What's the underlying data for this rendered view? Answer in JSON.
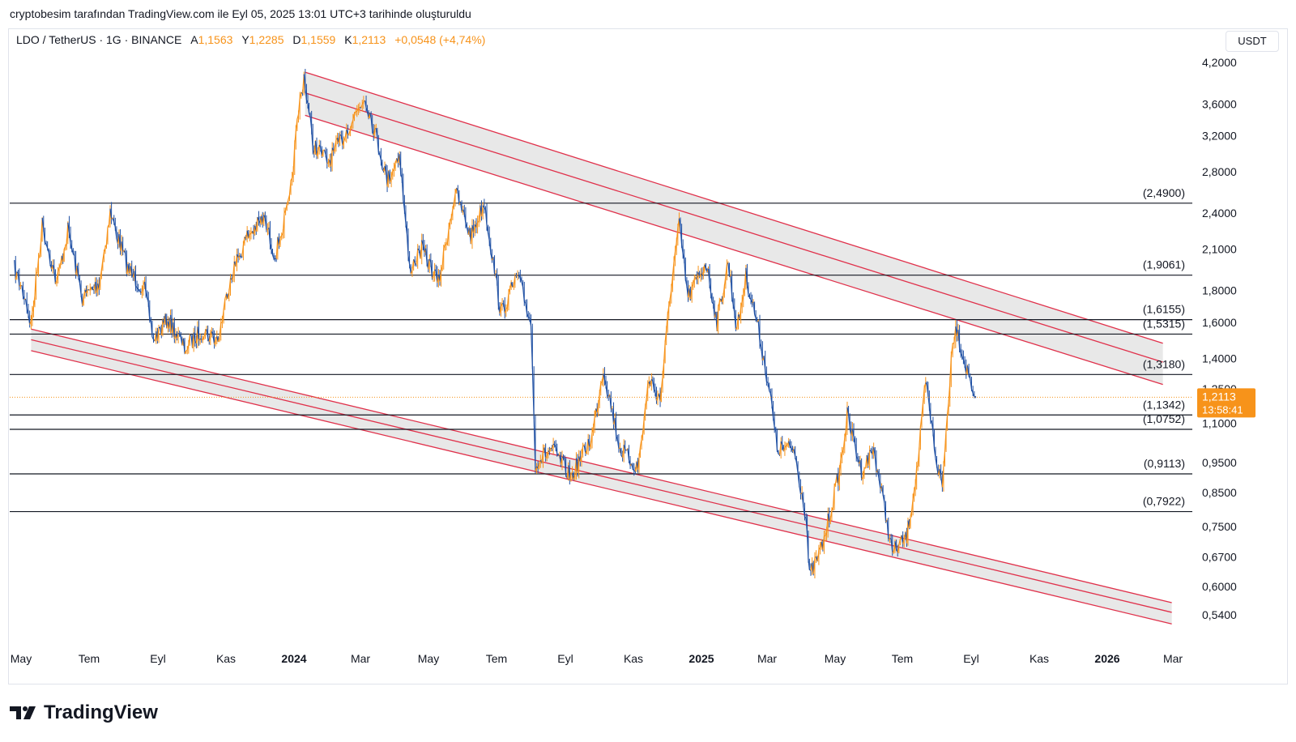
{
  "caption": "cryptobesim tarafından TradingView.com ile Eyl 05, 2025 13:01 UTC+3 tarihinde oluşturuldu",
  "header": {
    "symbol": "LDO / TetherUS · 1G · BINANCE",
    "open_key": "A",
    "open": "1,1563",
    "high_key": "Y",
    "high": "1,2285",
    "low_key": "D",
    "low": "1,1559",
    "close_key": "K",
    "close": "1,2113",
    "change": "+0,0548 (+4,74%)"
  },
  "currency": "USDT",
  "brand": "TradingView",
  "colors": {
    "up": "#f7931a",
    "down": "#1e4fa3",
    "channel": "#e0314b",
    "channel_fill": "#e4e4e4",
    "hline": "#131722",
    "price_tag": "#f7931a"
  },
  "chart_data": {
    "type": "line",
    "scale": "log",
    "pair": "LDO / TetherUS",
    "interval": "1G",
    "exchange": "BINANCE",
    "ylim": [
      0.51,
      4.3
    ],
    "y_ticks": [
      "4,2000",
      "3,6000",
      "3,2000",
      "2,8000",
      "2,4000",
      "2,1000",
      "1,8000",
      "1,6000",
      "1,4000",
      "1,2500",
      "1,1000",
      "0,9500",
      "0,8500",
      "0,7500",
      "0,6700",
      "0,6000",
      "0,5400"
    ],
    "y_tick_values": [
      4.2,
      3.6,
      3.2,
      2.8,
      2.4,
      2.1,
      1.8,
      1.6,
      1.4,
      1.25,
      1.1,
      0.95,
      0.85,
      0.75,
      0.67,
      0.6,
      0.54
    ],
    "x_ticks": [
      "May",
      "Tem",
      "Eyl",
      "Kas",
      "2024",
      "Mar",
      "May",
      "Tem",
      "Eyl",
      "Kas",
      "2025",
      "Mar",
      "May",
      "Tem",
      "Eyl",
      "Kas",
      "2026",
      "Mar"
    ],
    "x_tick_dates": [
      "2023-05-01",
      "2023-07-01",
      "2023-09-01",
      "2023-11-01",
      "2024-01-01",
      "2024-03-01",
      "2024-05-01",
      "2024-07-01",
      "2024-09-01",
      "2024-11-01",
      "2025-01-01",
      "2025-03-01",
      "2025-05-01",
      "2025-07-01",
      "2025-09-01",
      "2025-11-01",
      "2026-01-01",
      "2026-03-01"
    ],
    "x_bold": [
      "2024",
      "2025",
      "2026"
    ],
    "levels": [
      {
        "label": "(2,4900)",
        "value": 2.49
      },
      {
        "label": "(1,9061)",
        "value": 1.9061
      },
      {
        "label": "(1,6155)",
        "value": 1.6155
      },
      {
        "label": "(1,5315)",
        "value": 1.5315
      },
      {
        "label": "(1,3180)",
        "value": 1.318
      },
      {
        "label": "(1,1342)",
        "value": 1.1342
      },
      {
        "label": "(1,0752)",
        "value": 1.0752
      },
      {
        "label": "(0,9113)",
        "value": 0.9113
      },
      {
        "label": "(0,7922)",
        "value": 0.7922
      }
    ],
    "last_price": {
      "value": 1.2113,
      "label": "1,2113",
      "countdown": "13:58:41"
    },
    "price_path": [
      {
        "date": "2023-04-25",
        "close": 1.95
      },
      {
        "date": "2023-05-05",
        "close": 1.75
      },
      {
        "date": "2023-05-10",
        "close": 1.58
      },
      {
        "date": "2023-05-20",
        "close": 2.3
      },
      {
        "date": "2023-06-02",
        "close": 1.85
      },
      {
        "date": "2023-06-12",
        "close": 2.25
      },
      {
        "date": "2023-06-25",
        "close": 1.75
      },
      {
        "date": "2023-07-10",
        "close": 1.85
      },
      {
        "date": "2023-07-20",
        "close": 2.4
      },
      {
        "date": "2023-08-05",
        "close": 1.95
      },
      {
        "date": "2023-08-20",
        "close": 1.8
      },
      {
        "date": "2023-08-28",
        "close": 1.5
      },
      {
        "date": "2023-09-10",
        "close": 1.62
      },
      {
        "date": "2023-09-25",
        "close": 1.45
      },
      {
        "date": "2023-10-10",
        "close": 1.55
      },
      {
        "date": "2023-10-25",
        "close": 1.5
      },
      {
        "date": "2023-11-05",
        "close": 1.9
      },
      {
        "date": "2023-11-20",
        "close": 2.2
      },
      {
        "date": "2023-12-05",
        "close": 2.35
      },
      {
        "date": "2023-12-15",
        "close": 2.05
      },
      {
        "date": "2023-12-28",
        "close": 2.5
      },
      {
        "date": "2024-01-05",
        "close": 3.5
      },
      {
        "date": "2024-01-10",
        "close": 4.0
      },
      {
        "date": "2024-01-18",
        "close": 3.1
      },
      {
        "date": "2024-02-01",
        "close": 2.9
      },
      {
        "date": "2024-02-15",
        "close": 3.2
      },
      {
        "date": "2024-03-05",
        "close": 3.7
      },
      {
        "date": "2024-03-15",
        "close": 3.2
      },
      {
        "date": "2024-03-25",
        "close": 2.7
      },
      {
        "date": "2024-04-05",
        "close": 3.0
      },
      {
        "date": "2024-04-14",
        "close": 1.95
      },
      {
        "date": "2024-04-25",
        "close": 2.1
      },
      {
        "date": "2024-05-10",
        "close": 1.85
      },
      {
        "date": "2024-05-25",
        "close": 2.6
      },
      {
        "date": "2024-06-08",
        "close": 2.2
      },
      {
        "date": "2024-06-20",
        "close": 2.5
      },
      {
        "date": "2024-07-05",
        "close": 1.65
      },
      {
        "date": "2024-07-20",
        "close": 1.9
      },
      {
        "date": "2024-08-01",
        "close": 1.6
      },
      {
        "date": "2024-08-05",
        "close": 0.95
      },
      {
        "date": "2024-08-20",
        "close": 1.0
      },
      {
        "date": "2024-09-06",
        "close": 0.9
      },
      {
        "date": "2024-09-25",
        "close": 1.05
      },
      {
        "date": "2024-10-05",
        "close": 1.35
      },
      {
        "date": "2024-10-20",
        "close": 1.0
      },
      {
        "date": "2024-11-05",
        "close": 0.93
      },
      {
        "date": "2024-11-15",
        "close": 1.3
      },
      {
        "date": "2024-11-25",
        "close": 1.2
      },
      {
        "date": "2024-12-05",
        "close": 1.85
      },
      {
        "date": "2024-12-12",
        "close": 2.3
      },
      {
        "date": "2024-12-20",
        "close": 1.75
      },
      {
        "date": "2025-01-05",
        "close": 2.0
      },
      {
        "date": "2025-01-15",
        "close": 1.6
      },
      {
        "date": "2025-01-25",
        "close": 2.0
      },
      {
        "date": "2025-02-02",
        "close": 1.55
      },
      {
        "date": "2025-02-10",
        "close": 1.9
      },
      {
        "date": "2025-02-20",
        "close": 1.6
      },
      {
        "date": "2025-03-03",
        "close": 1.25
      },
      {
        "date": "2025-03-10",
        "close": 1.0
      },
      {
        "date": "2025-03-25",
        "close": 1.0
      },
      {
        "date": "2025-04-05",
        "close": 0.78
      },
      {
        "date": "2025-04-08",
        "close": 0.62
      },
      {
        "date": "2025-04-20",
        "close": 0.7
      },
      {
        "date": "2025-05-05",
        "close": 0.92
      },
      {
        "date": "2025-05-12",
        "close": 1.13
      },
      {
        "date": "2025-05-25",
        "close": 0.92
      },
      {
        "date": "2025-06-05",
        "close": 1.0
      },
      {
        "date": "2025-06-22",
        "close": 0.68
      },
      {
        "date": "2025-07-05",
        "close": 0.72
      },
      {
        "date": "2025-07-15",
        "close": 0.95
      },
      {
        "date": "2025-07-22",
        "close": 1.28
      },
      {
        "date": "2025-08-01",
        "close": 0.95
      },
      {
        "date": "2025-08-06",
        "close": 0.87
      },
      {
        "date": "2025-08-14",
        "close": 1.4
      },
      {
        "date": "2025-08-18",
        "close": 1.6
      },
      {
        "date": "2025-08-25",
        "close": 1.4
      },
      {
        "date": "2025-09-05",
        "close": 1.21
      }
    ],
    "channels": [
      {
        "name": "upper-channel",
        "top": [
          {
            "date": "2024-01-11",
            "value": 4.05
          },
          {
            "date": "2026-02-20",
            "value": 1.48
          }
        ],
        "mid": [
          {
            "date": "2024-01-11",
            "value": 3.75
          },
          {
            "date": "2026-02-20",
            "value": 1.38
          }
        ],
        "bottom": [
          {
            "date": "2024-01-11",
            "value": 3.45
          },
          {
            "date": "2026-02-20",
            "value": 1.27
          }
        ]
      },
      {
        "name": "lower-channel",
        "top": [
          {
            "date": "2023-05-10",
            "value": 1.56
          },
          {
            "date": "2026-02-28",
            "value": 0.565
          }
        ],
        "mid": [
          {
            "date": "2023-05-10",
            "value": 1.5
          },
          {
            "date": "2026-02-28",
            "value": 0.545
          }
        ],
        "bottom": [
          {
            "date": "2023-05-10",
            "value": 1.44
          },
          {
            "date": "2026-02-28",
            "value": 0.522
          }
        ]
      }
    ]
  }
}
